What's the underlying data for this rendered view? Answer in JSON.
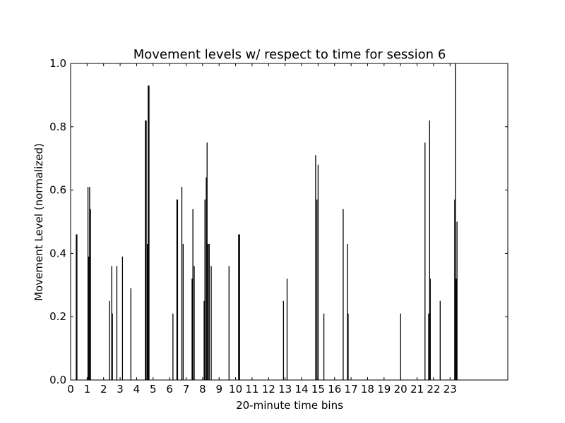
{
  "chart_data": {
    "type": "bar",
    "title": "Movement levels w/ respect to time for session 6",
    "xlabel": "20-minute time bins",
    "ylabel": "Movement Level (normalized)",
    "xlim": [
      0,
      26.5
    ],
    "ylim": [
      0,
      1.0
    ],
    "xticks": [
      {
        "value": 0,
        "label": "0"
      },
      {
        "value": 1,
        "label": "1"
      },
      {
        "value": 2,
        "label": "2"
      },
      {
        "value": 3,
        "label": "3"
      },
      {
        "value": 4,
        "label": "4"
      },
      {
        "value": 5,
        "label": "5"
      },
      {
        "value": 6,
        "label": "6"
      },
      {
        "value": 7,
        "label": "7"
      },
      {
        "value": 8,
        "label": "8"
      },
      {
        "value": 9,
        "label": "9"
      },
      {
        "value": 10,
        "label": "10"
      },
      {
        "value": 11,
        "label": "11"
      },
      {
        "value": 12,
        "label": "12"
      },
      {
        "value": 13,
        "label": "13"
      },
      {
        "value": 14,
        "label": "14"
      },
      {
        "value": 15,
        "label": "15"
      },
      {
        "value": 16,
        "label": "16"
      },
      {
        "value": 17,
        "label": "17"
      },
      {
        "value": 18,
        "label": "18"
      },
      {
        "value": 19,
        "label": "19"
      },
      {
        "value": 20,
        "label": "20"
      },
      {
        "value": 21,
        "label": "21"
      },
      {
        "value": 22,
        "label": "22"
      },
      {
        "value": 23,
        "label": "23"
      }
    ],
    "yticks": [
      {
        "value": 0.0,
        "label": "0.0"
      },
      {
        "value": 0.2,
        "label": "0.2"
      },
      {
        "value": 0.4,
        "label": "0.4"
      },
      {
        "value": 0.6,
        "label": "0.6"
      },
      {
        "value": 0.8,
        "label": "0.8"
      },
      {
        "value": 1.0,
        "label": "1.0"
      }
    ],
    "bar_color": "#000000",
    "grid": false,
    "bars": [
      {
        "x": 0.34,
        "y": 0.46
      },
      {
        "x": 0.38,
        "y": 0.46
      },
      {
        "x": 1.05,
        "y": 0.61
      },
      {
        "x": 1.1,
        "y": 0.39
      },
      {
        "x": 1.15,
        "y": 0.61
      },
      {
        "x": 1.2,
        "y": 0.54
      },
      {
        "x": 2.36,
        "y": 0.25
      },
      {
        "x": 2.49,
        "y": 0.36
      },
      {
        "x": 2.53,
        "y": 0.21
      },
      {
        "x": 2.8,
        "y": 0.36
      },
      {
        "x": 3.14,
        "y": 0.39
      },
      {
        "x": 3.65,
        "y": 0.29
      },
      {
        "x": 4.53,
        "y": 0.82
      },
      {
        "x": 4.58,
        "y": 0.82
      },
      {
        "x": 4.65,
        "y": 0.43
      },
      {
        "x": 4.7,
        "y": 0.93
      },
      {
        "x": 4.75,
        "y": 0.93
      },
      {
        "x": 6.2,
        "y": 0.21
      },
      {
        "x": 6.44,
        "y": 0.57
      },
      {
        "x": 6.48,
        "y": 0.57
      },
      {
        "x": 6.74,
        "y": 0.61
      },
      {
        "x": 6.82,
        "y": 0.43
      },
      {
        "x": 7.36,
        "y": 0.32
      },
      {
        "x": 7.41,
        "y": 0.54
      },
      {
        "x": 7.49,
        "y": 0.36
      },
      {
        "x": 8.09,
        "y": 0.25
      },
      {
        "x": 8.14,
        "y": 0.57
      },
      {
        "x": 8.22,
        "y": 0.64
      },
      {
        "x": 8.27,
        "y": 0.75
      },
      {
        "x": 8.33,
        "y": 0.43
      },
      {
        "x": 8.4,
        "y": 0.43
      },
      {
        "x": 8.52,
        "y": 0.36
      },
      {
        "x": 9.6,
        "y": 0.36
      },
      {
        "x": 10.18,
        "y": 0.46
      },
      {
        "x": 10.24,
        "y": 0.46
      },
      {
        "x": 12.9,
        "y": 0.25
      },
      {
        "x": 13.12,
        "y": 0.32
      },
      {
        "x": 14.85,
        "y": 0.71
      },
      {
        "x": 14.93,
        "y": 0.57
      },
      {
        "x": 15.0,
        "y": 0.68
      },
      {
        "x": 15.35,
        "y": 0.21
      },
      {
        "x": 16.52,
        "y": 0.54
      },
      {
        "x": 16.78,
        "y": 0.43
      },
      {
        "x": 16.82,
        "y": 0.21
      },
      {
        "x": 20.0,
        "y": 0.21
      },
      {
        "x": 21.48,
        "y": 0.75
      },
      {
        "x": 21.7,
        "y": 0.21
      },
      {
        "x": 21.76,
        "y": 0.82
      },
      {
        "x": 21.8,
        "y": 0.32
      },
      {
        "x": 22.4,
        "y": 0.25
      },
      {
        "x": 23.28,
        "y": 0.57
      },
      {
        "x": 23.32,
        "y": 1.0
      },
      {
        "x": 23.38,
        "y": 0.32
      },
      {
        "x": 23.42,
        "y": 0.5
      }
    ]
  }
}
